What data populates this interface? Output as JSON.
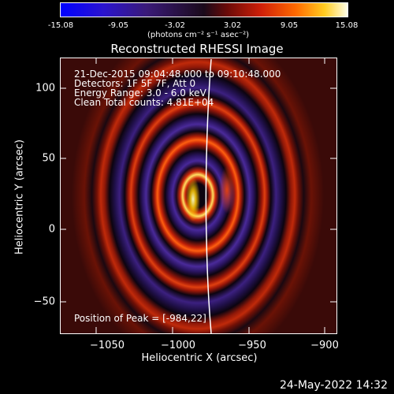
{
  "colorbar": {
    "tick_labels": [
      "-15.08",
      "-9.05",
      "-3.02",
      "3.02",
      "9.05",
      "15.08"
    ],
    "units": "(photons cm⁻² s⁻¹ asec⁻²)",
    "range": [
      -15.08,
      15.08
    ]
  },
  "plot": {
    "title": "Reconstructed RHESSI Image",
    "info_lines": [
      "21-Dec-2015 09:04:48.000 to 09:10:48.000",
      "Detectors: 1F 5F 7F, Att 0",
      "Energy Range: 3.0 - 6.0 keV",
      "Clean     Total counts: 4.81E+04"
    ],
    "peak_text": "Position of Peak = [-984,22]",
    "xlabel": "Heliocentric X (arcsec)",
    "ylabel": "Heliocentric Y (arcsec)",
    "x_ticks": [
      "−1050",
      "−1000",
      "−950",
      "−900"
    ],
    "y_ticks": [
      "100",
      "50",
      "0",
      "−50"
    ]
  },
  "footer": {
    "timestamp": "24-May-2022 14:32"
  }
}
